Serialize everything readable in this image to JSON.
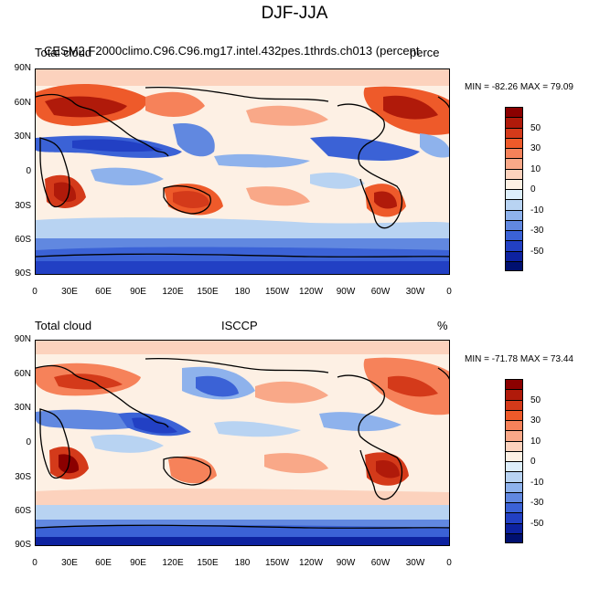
{
  "title": "DJF-JJA",
  "colorbar_levels": [
    "50",
    "30",
    "10",
    "0",
    "-10",
    "-30",
    "-50"
  ],
  "colors": [
    "#8b0000",
    "#b01a0a",
    "#d43a1a",
    "#ee5a2a",
    "#f6825a",
    "#f9a888",
    "#fcd2bd",
    "#fdf0e4",
    "#ddeefb",
    "#b8d3f2",
    "#8eb2ec",
    "#6188e0",
    "#3b62d6",
    "#2240c4",
    "#0d22a0",
    "#001070"
  ],
  "chart_data": [
    {
      "type": "heatmap",
      "left_label": "Total cloud",
      "center_label": "CESM2.F2000climo.C96.C96.mg17.intel.432pes.1thrds.ch013 (percent",
      "right_label": "perce",
      "min_label": "MIN = -82.26 MAX =  79.09",
      "lat_ticks": [
        "90N",
        "60N",
        "30N",
        "0",
        "30S",
        "60S",
        "90S"
      ],
      "lon_ticks": [
        "0",
        "30E",
        "60E",
        "90E",
        "120E",
        "150E",
        "180",
        "150W",
        "120W",
        "90W",
        "60W",
        "30W",
        "0"
      ]
    },
    {
      "type": "heatmap",
      "left_label": "Total cloud",
      "center_label": "ISCCP",
      "right_label": "%",
      "min_label": "MIN = -71.78 MAX =  73.44",
      "lat_ticks": [
        "90N",
        "60N",
        "30N",
        "0",
        "30S",
        "60S",
        "90S"
      ],
      "lon_ticks": [
        "0",
        "30E",
        "60E",
        "90E",
        "120E",
        "150E",
        "180",
        "150W",
        "120W",
        "90W",
        "60W",
        "30W",
        "0"
      ]
    }
  ]
}
